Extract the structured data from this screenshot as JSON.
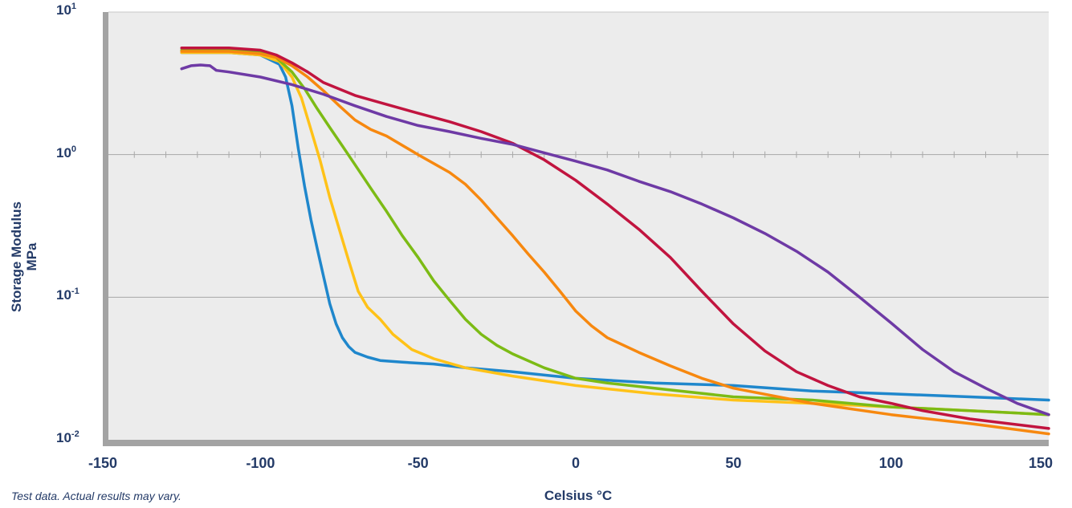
{
  "chart_data": {
    "type": "line",
    "ylabel_line1": "Storage Modulus",
    "ylabel_line2": "MPa",
    "xlabel": "Celsius °C",
    "xlim": [
      -150,
      150
    ],
    "ylim": [
      0.01,
      10
    ],
    "yscale": "log",
    "x_ticks": [
      "-150",
      "-100",
      "-50",
      "0",
      "50",
      "100",
      "150"
    ],
    "y_ticks": [
      {
        "base": "10",
        "exp": "1"
      },
      {
        "base": "10",
        "exp": "0"
      },
      {
        "base": "10",
        "exp": "-1"
      },
      {
        "base": "10",
        "exp": "-2"
      }
    ],
    "grid": true,
    "legend": "none",
    "series": [
      {
        "color": "#1f87cc",
        "x": [
          -125,
          -110,
          -100,
          -94,
          -92,
          -90,
          -88,
          -86,
          -84,
          -82,
          -80,
          -78,
          -76,
          -74,
          -72,
          -70,
          -66,
          -62,
          -55,
          -45,
          -35,
          -20,
          0,
          25,
          50,
          75,
          100,
          125,
          150
        ],
        "y": [
          5.2,
          5.2,
          5.0,
          4.3,
          3.5,
          2.2,
          1.1,
          0.6,
          0.35,
          0.22,
          0.14,
          0.09,
          0.065,
          0.052,
          0.045,
          0.041,
          0.038,
          0.036,
          0.035,
          0.034,
          0.032,
          0.03,
          0.027,
          0.025,
          0.024,
          0.022,
          0.021,
          0.02,
          0.019
        ]
      },
      {
        "color": "#ffc218",
        "x": [
          -125,
          -110,
          -100,
          -94,
          -90,
          -87,
          -84,
          -81,
          -78,
          -75,
          -72,
          -69,
          -66,
          -62,
          -58,
          -52,
          -45,
          -35,
          -20,
          0,
          25,
          50,
          75,
          100,
          125,
          150
        ],
        "y": [
          5.2,
          5.2,
          5.0,
          4.5,
          3.5,
          2.5,
          1.5,
          0.9,
          0.5,
          0.3,
          0.18,
          0.11,
          0.085,
          0.07,
          0.055,
          0.043,
          0.037,
          0.032,
          0.028,
          0.024,
          0.021,
          0.019,
          0.018,
          0.017,
          0.016,
          0.015
        ]
      },
      {
        "color": "#7cbb15",
        "x": [
          -125,
          -110,
          -100,
          -95,
          -90,
          -86,
          -82,
          -78,
          -74,
          -70,
          -65,
          -60,
          -55,
          -50,
          -45,
          -40,
          -35,
          -30,
          -25,
          -20,
          -10,
          0,
          10,
          25,
          50,
          75,
          100,
          125,
          150
        ],
        "y": [
          5.4,
          5.4,
          5.2,
          4.8,
          3.8,
          2.9,
          2.1,
          1.55,
          1.15,
          0.85,
          0.58,
          0.4,
          0.27,
          0.19,
          0.13,
          0.095,
          0.07,
          0.055,
          0.046,
          0.04,
          0.032,
          0.027,
          0.025,
          0.023,
          0.02,
          0.019,
          0.017,
          0.016,
          0.015
        ]
      },
      {
        "color": "#f7880f",
        "x": [
          -125,
          -110,
          -100,
          -95,
          -90,
          -85,
          -80,
          -75,
          -70,
          -65,
          -60,
          -50,
          -40,
          -35,
          -30,
          -25,
          -20,
          -15,
          -10,
          -5,
          0,
          5,
          10,
          20,
          30,
          40,
          50,
          75,
          100,
          125,
          150
        ],
        "y": [
          5.3,
          5.3,
          5.1,
          4.8,
          4.2,
          3.5,
          2.8,
          2.2,
          1.75,
          1.5,
          1.35,
          1.0,
          0.75,
          0.62,
          0.48,
          0.36,
          0.27,
          0.2,
          0.15,
          0.11,
          0.08,
          0.063,
          0.052,
          0.041,
          0.033,
          0.027,
          0.023,
          0.018,
          0.015,
          0.013,
          0.011
        ]
      },
      {
        "color": "#c1143f",
        "x": [
          -125,
          -110,
          -100,
          -95,
          -90,
          -85,
          -80,
          -70,
          -60,
          -50,
          -40,
          -30,
          -20,
          -10,
          0,
          10,
          20,
          30,
          40,
          50,
          60,
          70,
          80,
          90,
          100,
          110,
          125,
          150
        ],
        "y": [
          5.6,
          5.6,
          5.4,
          5.0,
          4.4,
          3.8,
          3.2,
          2.6,
          2.25,
          1.95,
          1.7,
          1.45,
          1.2,
          0.92,
          0.66,
          0.45,
          0.3,
          0.19,
          0.11,
          0.065,
          0.042,
          0.03,
          0.024,
          0.02,
          0.018,
          0.016,
          0.014,
          0.012
        ]
      },
      {
        "color": "#6e3aa5",
        "x": [
          -125,
          -122,
          -119,
          -116,
          -114,
          -110,
          -100,
          -90,
          -80,
          -70,
          -60,
          -50,
          -40,
          -30,
          -20,
          -10,
          0,
          10,
          20,
          30,
          40,
          50,
          60,
          70,
          80,
          90,
          100,
          110,
          120,
          130,
          140,
          150
        ],
        "y": [
          4.0,
          4.2,
          4.25,
          4.2,
          3.9,
          3.8,
          3.5,
          3.1,
          2.65,
          2.2,
          1.85,
          1.6,
          1.45,
          1.3,
          1.18,
          1.03,
          0.9,
          0.78,
          0.65,
          0.55,
          0.45,
          0.36,
          0.28,
          0.21,
          0.15,
          0.1,
          0.066,
          0.043,
          0.03,
          0.023,
          0.018,
          0.015
        ]
      }
    ]
  },
  "footnote": "Test data. Actual results may vary."
}
